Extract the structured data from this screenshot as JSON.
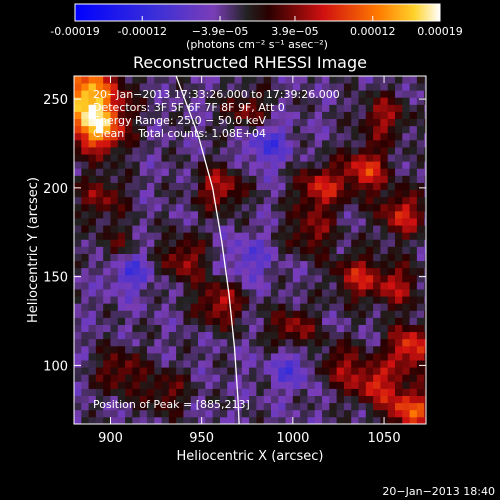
{
  "chart_data": {
    "type": "heatmap",
    "title": "Reconstructed RHESSI Image",
    "xlabel": "Heliocentric X (arcsec)",
    "ylabel": "Heliocentric Y (arcsec)",
    "xlim": [
      880,
      1073
    ],
    "ylim": [
      67,
      263
    ],
    "x_ticks": [
      {
        "value": 900,
        "label": "900"
      },
      {
        "value": 950,
        "label": "950"
      },
      {
        "value": 1000,
        "label": "1000"
      },
      {
        "value": 1050,
        "label": "1050"
      }
    ],
    "y_ticks": [
      {
        "value": 100,
        "label": "100"
      },
      {
        "value": 150,
        "label": "150"
      },
      {
        "value": 200,
        "label": "200"
      },
      {
        "value": 250,
        "label": "250"
      }
    ],
    "colorbar": {
      "min": -0.00019,
      "max": 0.00019,
      "ticks": [
        {
          "value": -0.00019,
          "label": "-0.00019"
        },
        {
          "value": -0.00012,
          "label": "-0.00012"
        },
        {
          "value": -3.9e-05,
          "label": "−3.9e−05"
        },
        {
          "value": 3.9e-05,
          "label": "3.9e−05"
        },
        {
          "value": 0.00012,
          "label": "0.00012"
        },
        {
          "value": 0.00019,
          "label": "0.00019"
        }
      ],
      "unit_label": "(photons cm⁻² s⁻¹ asec⁻²)"
    },
    "annotations": [
      "20−Jan−2013 17:33:26.000 to 17:39:26.000",
      "Detectors: 3F 5F 6F 7F 8F 9F, Att 0",
      "Energy Range: 25.0 − 50.0 keV",
      "Clean    Total counts: 1.08E+04"
    ],
    "peak_label": "Position of Peak = [885,213]",
    "limb": [
      [
        936,
        263
      ],
      [
        948,
        230
      ],
      [
        956,
        200
      ],
      [
        961,
        170
      ],
      [
        965,
        140
      ],
      [
        968,
        110
      ],
      [
        970,
        80
      ],
      [
        970.5,
        67
      ]
    ],
    "hotspots": [
      {
        "x": 886,
        "y": 250,
        "v": 0.00019
      },
      {
        "x": 895,
        "y": 232,
        "v": 0.00012
      },
      {
        "x": 960,
        "y": 200,
        "v": 9e-05
      },
      {
        "x": 975,
        "y": 243,
        "v": 7e-05
      },
      {
        "x": 1015,
        "y": 200,
        "v": 0.0001
      },
      {
        "x": 1040,
        "y": 210,
        "v": 0.00011
      },
      {
        "x": 1060,
        "y": 185,
        "v": 0.0001
      },
      {
        "x": 1050,
        "y": 240,
        "v": 8e-05
      },
      {
        "x": 1035,
        "y": 150,
        "v": 9e-05
      },
      {
        "x": 1057,
        "y": 145,
        "v": 8e-05
      },
      {
        "x": 1010,
        "y": 175,
        "v": 7e-05
      },
      {
        "x": 960,
        "y": 135,
        "v": 9e-05
      },
      {
        "x": 940,
        "y": 160,
        "v": 8e-05
      },
      {
        "x": 905,
        "y": 165,
        "v": 6e-05
      },
      {
        "x": 895,
        "y": 195,
        "v": 7e-05
      },
      {
        "x": 905,
        "y": 97,
        "v": 7e-05
      },
      {
        "x": 930,
        "y": 85,
        "v": 6e-05
      },
      {
        "x": 1000,
        "y": 120,
        "v": 8e-05
      },
      {
        "x": 1025,
        "y": 100,
        "v": 7e-05
      },
      {
        "x": 1045,
        "y": 90,
        "v": 0.0001
      },
      {
        "x": 1065,
        "y": 110,
        "v": 0.00012
      },
      {
        "x": 1065,
        "y": 75,
        "v": 0.00013
      }
    ],
    "coldspots": [
      {
        "x": 910,
        "y": 155,
        "v": -8e-05
      },
      {
        "x": 985,
        "y": 225,
        "v": -7e-05
      },
      {
        "x": 1000,
        "y": 100,
        "v": -6e-05
      },
      {
        "x": 975,
        "y": 160,
        "v": -5e-05
      }
    ]
  },
  "footer": {
    "timestamp": "20−Jan−2013 18:40"
  }
}
